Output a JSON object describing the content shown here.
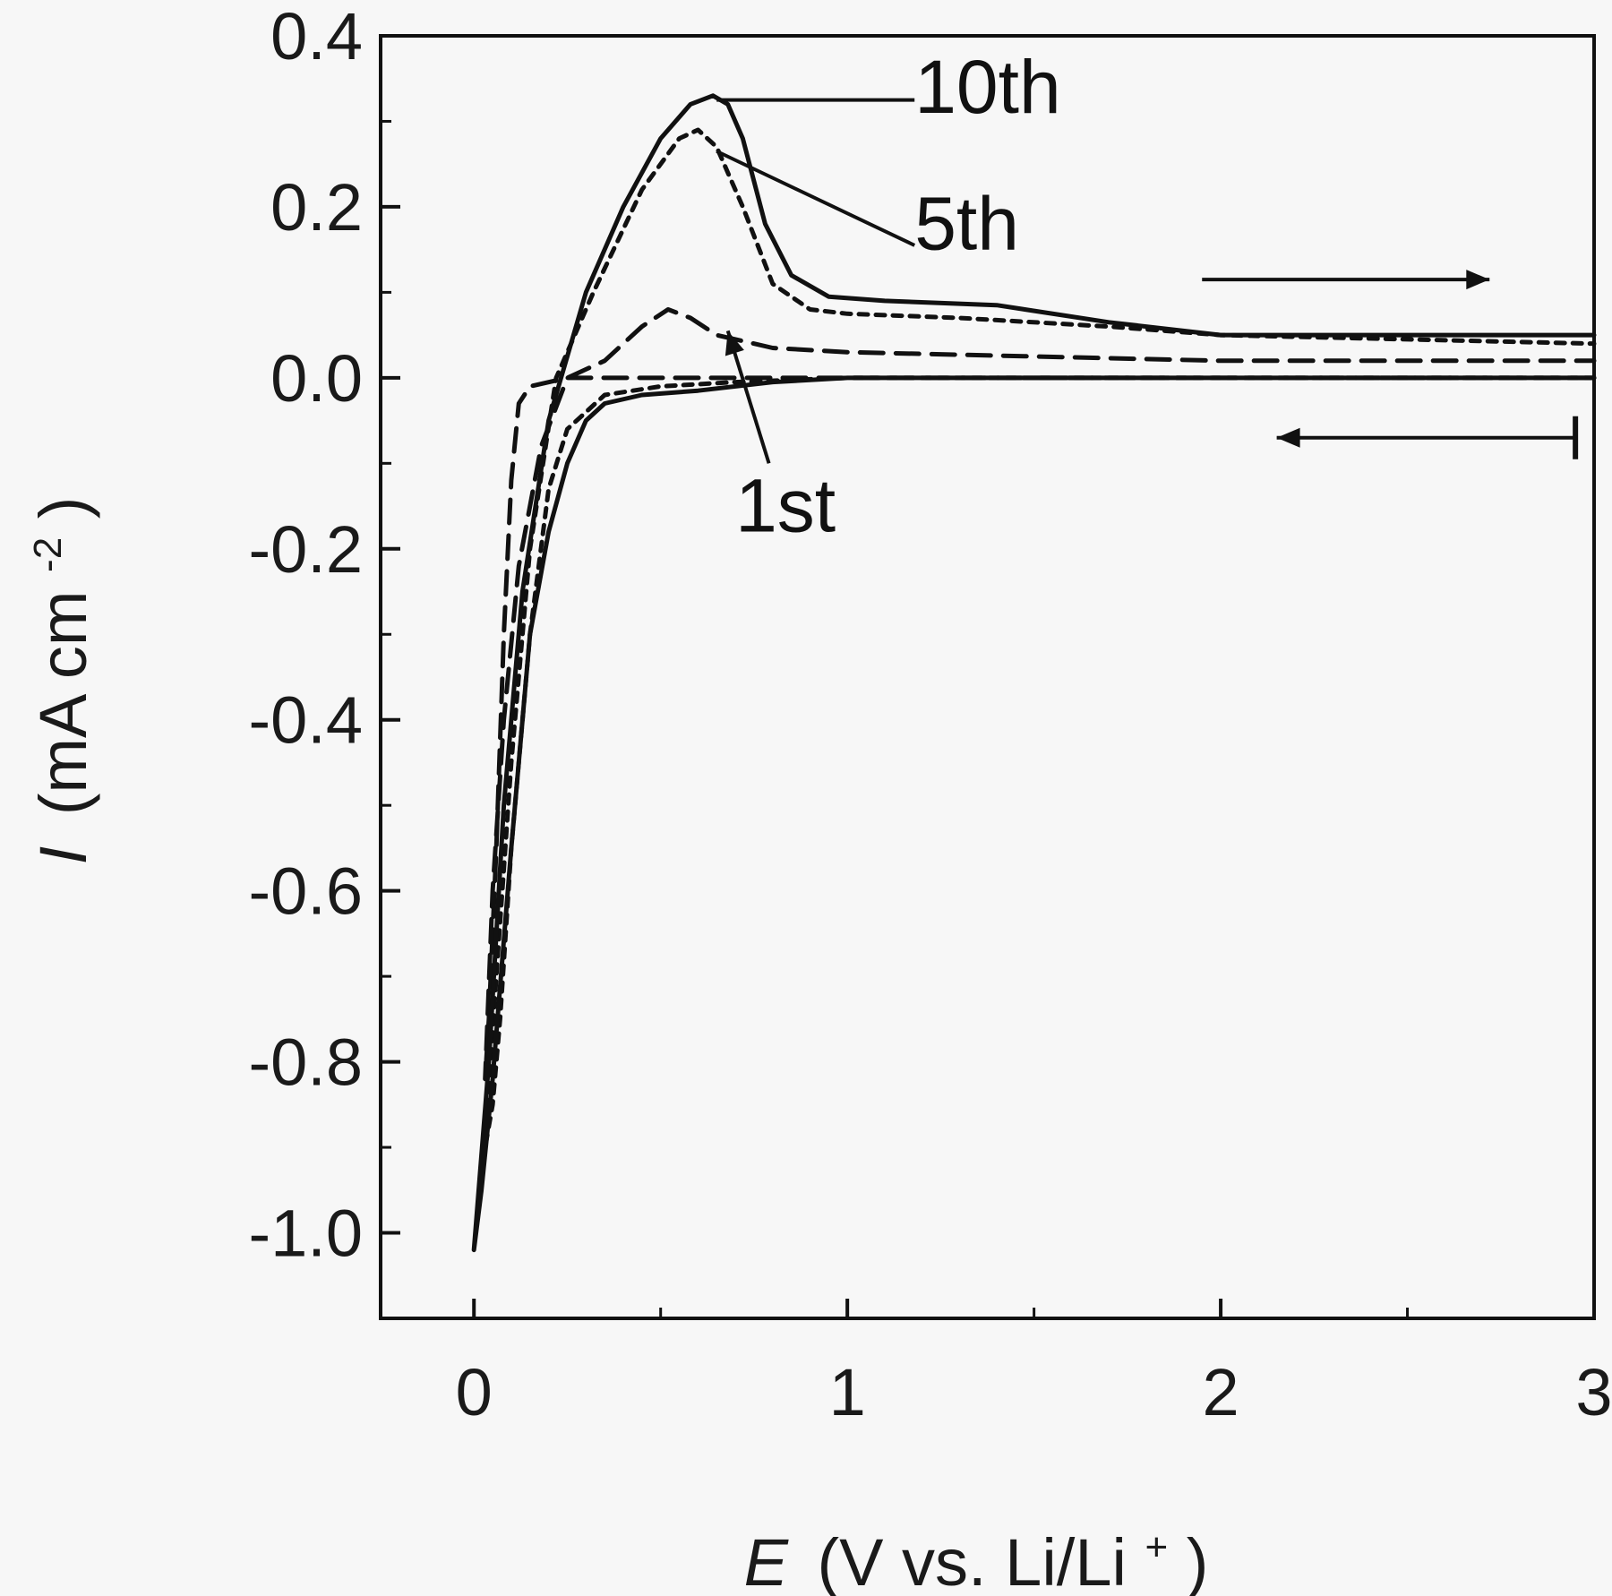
{
  "chart_data": {
    "type": "line",
    "xlabel": {
      "symbol": "E",
      "unit": "(V vs. Li/Li",
      "sup": "+",
      "close": ")"
    },
    "ylabel": {
      "symbol": "I",
      "unit": "(mA cm",
      "sup": "-2",
      "close": ")"
    },
    "xlim": [
      -0.25,
      3.0
    ],
    "ylim": [
      -1.1,
      0.4
    ],
    "xticks": [
      0,
      1,
      2,
      3
    ],
    "xtick_labels": [
      "0",
      "1",
      "2",
      "3"
    ],
    "yticks": [
      0.4,
      0.2,
      0.0,
      -0.2,
      -0.4,
      -0.6,
      -0.8,
      -1.0
    ],
    "ytick_labels": [
      "0.4",
      "0.2",
      "0.0",
      "-0.2",
      "-0.4",
      "-0.6",
      "-0.8",
      "-1.0"
    ],
    "series": [
      {
        "name": "1st",
        "style": "dashed",
        "x": [
          3.0,
          2.5,
          2.0,
          1.5,
          1.0,
          0.6,
          0.4,
          0.25,
          0.15,
          0.12,
          0.1,
          0.08,
          0.06,
          0.04,
          0.03,
          0.05,
          0.08,
          0.12,
          0.18,
          0.25,
          0.35,
          0.45,
          0.52,
          0.58,
          0.65,
          0.8,
          1.0,
          1.5,
          2.0,
          2.5,
          3.0
        ],
        "y": [
          0.0,
          0.0,
          0.0,
          0.0,
          0.0,
          0.0,
          0.0,
          0.0,
          -0.01,
          -0.03,
          -0.12,
          -0.3,
          -0.55,
          -0.75,
          -0.82,
          -0.6,
          -0.4,
          -0.22,
          -0.08,
          0.0,
          0.02,
          0.06,
          0.08,
          0.07,
          0.05,
          0.035,
          0.03,
          0.025,
          0.02,
          0.02,
          0.02
        ]
      },
      {
        "name": "5th",
        "style": "dotted",
        "x": [
          3.0,
          2.5,
          2.0,
          1.5,
          1.0,
          0.7,
          0.5,
          0.35,
          0.25,
          0.2,
          0.15,
          0.1,
          0.07,
          0.05,
          0.03,
          0.06,
          0.1,
          0.15,
          0.22,
          0.32,
          0.45,
          0.55,
          0.6,
          0.65,
          0.72,
          0.8,
          0.9,
          1.0,
          1.3,
          1.7,
          2.0,
          2.5,
          3.0
        ],
        "y": [
          0.0,
          0.0,
          0.0,
          0.0,
          0.0,
          -0.005,
          -0.01,
          -0.02,
          -0.06,
          -0.13,
          -0.3,
          -0.55,
          -0.75,
          -0.85,
          -0.9,
          -0.7,
          -0.45,
          -0.2,
          0.0,
          0.1,
          0.22,
          0.28,
          0.29,
          0.27,
          0.2,
          0.11,
          0.08,
          0.075,
          0.07,
          0.06,
          0.05,
          0.045,
          0.04
        ]
      },
      {
        "name": "10th",
        "style": "solid",
        "x": [
          3.0,
          2.5,
          2.0,
          1.5,
          1.0,
          0.8,
          0.6,
          0.45,
          0.35,
          0.3,
          0.25,
          0.2,
          0.15,
          0.1,
          0.05,
          0.02,
          0.0,
          0.04,
          0.08,
          0.13,
          0.2,
          0.3,
          0.4,
          0.5,
          0.58,
          0.64,
          0.68,
          0.72,
          0.78,
          0.85,
          0.95,
          1.1,
          1.4,
          1.7,
          2.0,
          2.5,
          3.0
        ],
        "y": [
          0.0,
          0.0,
          0.0,
          0.0,
          0.0,
          -0.005,
          -0.015,
          -0.02,
          -0.03,
          -0.05,
          -0.1,
          -0.18,
          -0.3,
          -0.55,
          -0.82,
          -0.95,
          -1.02,
          -0.8,
          -0.5,
          -0.25,
          -0.05,
          0.1,
          0.2,
          0.28,
          0.32,
          0.33,
          0.32,
          0.28,
          0.18,
          0.12,
          0.095,
          0.09,
          0.085,
          0.065,
          0.05,
          0.05,
          0.05
        ]
      }
    ],
    "annotations": [
      {
        "label": "10th",
        "text_xy": [
          1.18,
          0.31
        ],
        "line_from": [
          1.18,
          0.325
        ],
        "line_to": [
          0.65,
          0.325
        ]
      },
      {
        "label": "5th",
        "text_xy": [
          1.18,
          0.15
        ],
        "line_from": [
          1.18,
          0.155
        ],
        "line_to": [
          0.65,
          0.265
        ]
      },
      {
        "label": "1st",
        "text_xy": [
          0.7,
          -0.18
        ],
        "arrow_from": [
          0.79,
          -0.1
        ],
        "arrow_to": [
          0.68,
          0.055
        ]
      }
    ],
    "scan_arrows": [
      {
        "direction": "right",
        "from": [
          1.95,
          0.115
        ],
        "to": [
          2.72,
          0.115
        ]
      },
      {
        "direction": "left",
        "from": [
          2.95,
          -0.07
        ],
        "to": [
          2.15,
          -0.07
        ]
      }
    ],
    "grid": false,
    "legend": "none"
  }
}
